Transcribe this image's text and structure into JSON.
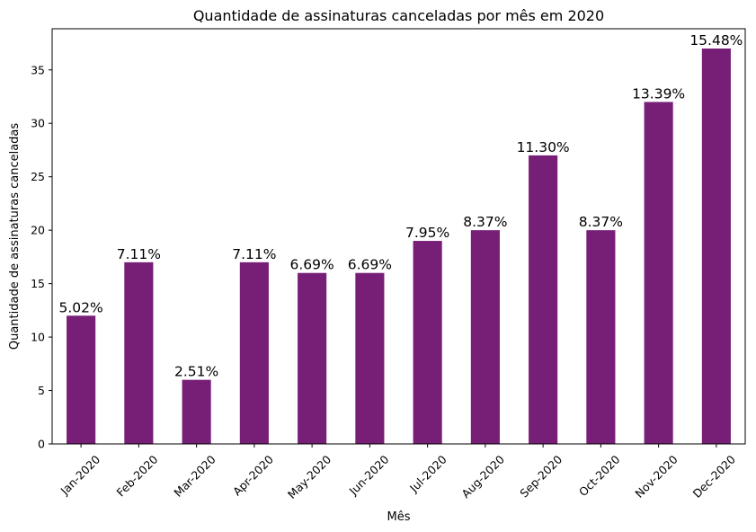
{
  "chart_data": {
    "type": "bar",
    "title": "Quantidade de assinaturas canceladas por mês em 2020",
    "xlabel": "Mês",
    "ylabel": "Quantidade de assinaturas canceladas",
    "categories": [
      "Jan-2020",
      "Feb-2020",
      "Mar-2020",
      "Apr-2020",
      "May-2020",
      "Jun-2020",
      "Jul-2020",
      "Aug-2020",
      "Sep-2020",
      "Oct-2020",
      "Nov-2020",
      "Dec-2020"
    ],
    "values": [
      12,
      17,
      6,
      17,
      16,
      16,
      19,
      20,
      27,
      20,
      32,
      37
    ],
    "data_labels": [
      "5.02%",
      "7.11%",
      "2.51%",
      "7.11%",
      "6.69%",
      "6.69%",
      "7.95%",
      "8.37%",
      "11.30%",
      "8.37%",
      "13.39%",
      "15.48%"
    ],
    "ylim": [
      0,
      38.85
    ],
    "yticks": [
      0,
      5,
      10,
      15,
      20,
      25,
      30,
      35
    ],
    "bar_color": "#771f77",
    "grid": false,
    "legend": "none"
  }
}
